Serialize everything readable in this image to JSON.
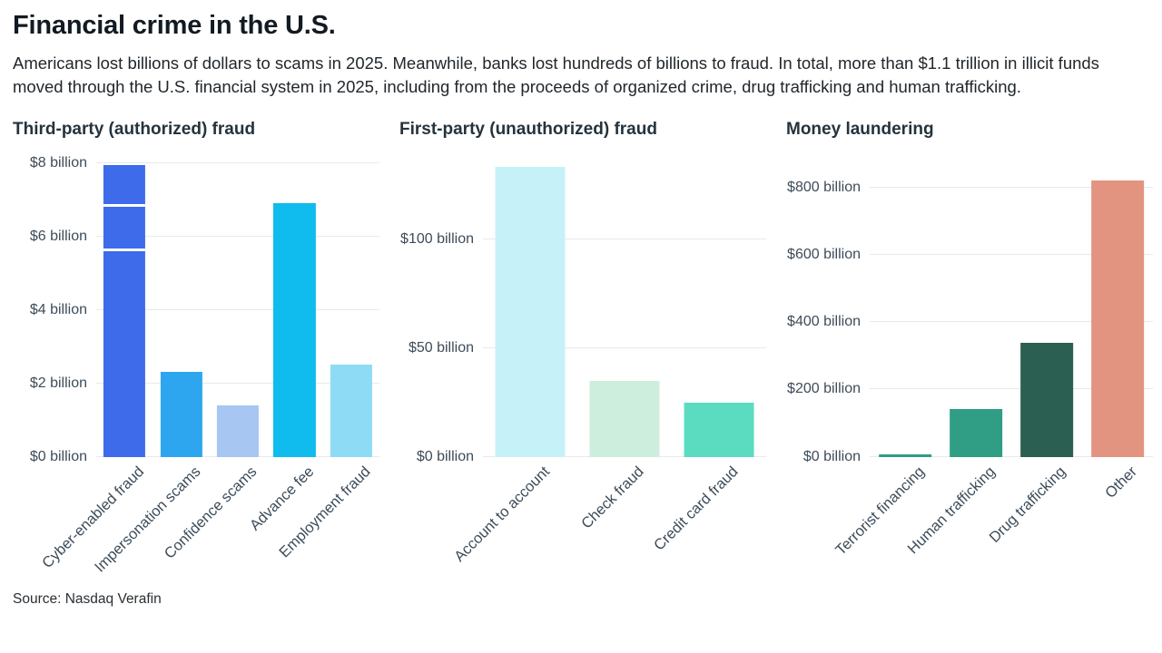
{
  "figure": {
    "title": "Financial crime in the U.S.",
    "subtitle": "Americans lost billions of dollars to scams in 2025. Meanwhile, banks lost hundreds of billions to fraud. In total, more than $1.1 trillion in illicit funds moved through the U.S. financial system in 2025, including from the proceeds of organized crime, drug trafficking and human trafficking.",
    "source": "Source: Nasdaq Verafin"
  },
  "chart_data": [
    {
      "type": "bar",
      "title": "Third-party (authorized) fraud",
      "ylabel": "",
      "xlabel": "",
      "ylim": [
        0,
        8.3
      ],
      "grid": true,
      "yticks": [
        {
          "value": 0,
          "label": "$0 billion"
        },
        {
          "value": 2,
          "label": "$2 billion"
        },
        {
          "value": 4,
          "label": "$4 billion"
        },
        {
          "value": 6,
          "label": "$6 billion"
        },
        {
          "value": 8,
          "label": "$8 billion"
        }
      ],
      "bars": [
        {
          "label": "Cyber-enabled fraud",
          "value": 7.95,
          "color": "#3e6bea",
          "dividers": [
            5.6,
            6.8
          ]
        },
        {
          "label": "Impersonation scams",
          "value": 2.3,
          "color": "#2ea6ef"
        },
        {
          "label": "Confidence scams",
          "value": 1.4,
          "color": "#a7c6f1"
        },
        {
          "label": "Advance fee",
          "value": 6.9,
          "color": "#10bcee"
        },
        {
          "label": "Employment fraud",
          "value": 2.5,
          "color": "#8edbf6"
        }
      ]
    },
    {
      "type": "bar",
      "title": "First-party (unauthorized) fraud",
      "ylabel": "",
      "xlabel": "",
      "ylim": [
        0,
        140
      ],
      "grid": true,
      "yticks": [
        {
          "value": 0,
          "label": "$0 billion"
        },
        {
          "value": 50,
          "label": "$50 billion"
        },
        {
          "value": 100,
          "label": "$100 billion"
        }
      ],
      "bars": [
        {
          "label": "Account to account",
          "value": 133,
          "color": "#c7f1f8"
        },
        {
          "label": "Check fraud",
          "value": 35,
          "color": "#cdeedd"
        },
        {
          "label": "Credit card fraud",
          "value": 25,
          "color": "#5bdcc0"
        }
      ]
    },
    {
      "type": "bar",
      "title": "Money laundering",
      "ylabel": "",
      "xlabel": "",
      "ylim": [
        0,
        905
      ],
      "grid": true,
      "yticks": [
        {
          "value": 0,
          "label": "$0 billion"
        },
        {
          "value": 200,
          "label": "$200 billion"
        },
        {
          "value": 400,
          "label": "$400 billion"
        },
        {
          "value": 600,
          "label": "$600 billion"
        },
        {
          "value": 800,
          "label": "$800 billion"
        }
      ],
      "bars": [
        {
          "label": "Terrorist financing",
          "value": 8,
          "color": "#2f9e85"
        },
        {
          "label": "Human trafficking",
          "value": 142,
          "color": "#2f9e85"
        },
        {
          "label": "Drug trafficking",
          "value": 337,
          "color": "#2a5f52"
        },
        {
          "label": "Other",
          "value": 820,
          "color": "#e29480"
        }
      ]
    }
  ]
}
